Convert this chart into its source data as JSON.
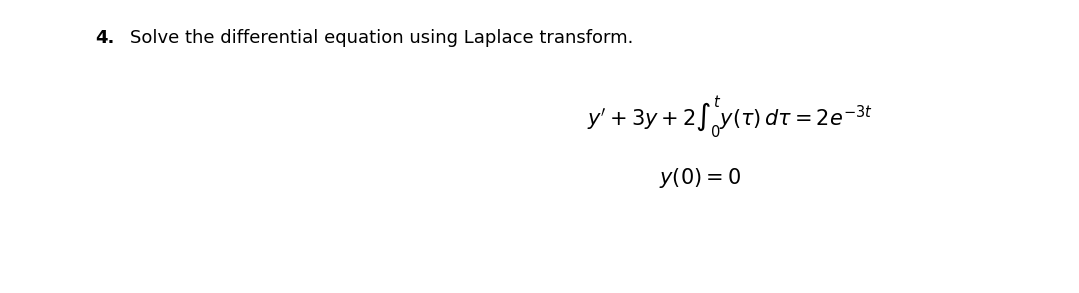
{
  "background_color": "#ffffff",
  "fig_width": 10.79,
  "fig_height": 2.93,
  "dpi": 100,
  "number_text": "4.",
  "number_fontsize": 13,
  "number_fontweight": "bold",
  "header_text": "Solve the differential equation using Laplace transform.",
  "header_fontsize": 13,
  "equation_fontsize": 15,
  "condition_fontsize": 15
}
